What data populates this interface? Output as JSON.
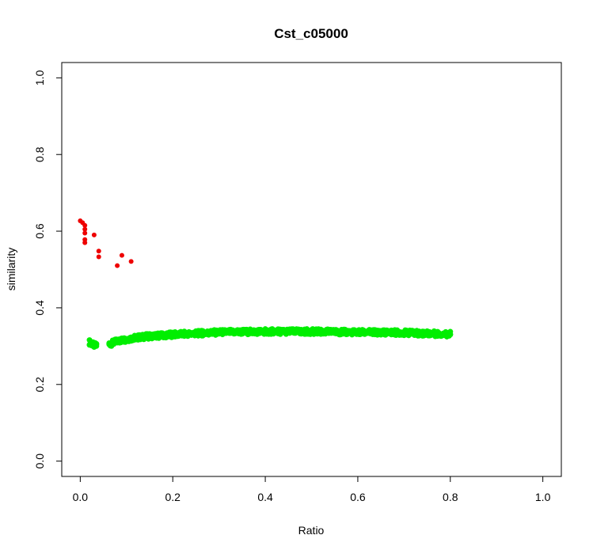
{
  "chart_data": {
    "type": "scatter",
    "title": "Cst_c05000",
    "xlabel": "Ratio",
    "ylabel": "similarity",
    "xlim": [
      -0.04,
      1.04
    ],
    "ylim": [
      -0.04,
      1.04
    ],
    "x_ticks": [
      "0.0",
      "0.2",
      "0.4",
      "0.6",
      "0.8",
      "1.0"
    ],
    "y_ticks": [
      "0.0",
      "0.2",
      "0.4",
      "0.6",
      "0.8",
      "1.0"
    ],
    "grid": false,
    "legend": "none",
    "colors": {
      "series1": "#ee0000",
      "series2": "#00ee00"
    },
    "series": [
      {
        "color": "#ee0000",
        "points": [
          [
            0.0,
            0.627
          ],
          [
            0.005,
            0.622
          ],
          [
            0.01,
            0.615
          ],
          [
            0.01,
            0.605
          ],
          [
            0.01,
            0.595
          ],
          [
            0.01,
            0.578
          ],
          [
            0.01,
            0.57
          ],
          [
            0.03,
            0.59
          ],
          [
            0.04,
            0.548
          ],
          [
            0.04,
            0.533
          ],
          [
            0.08,
            0.51
          ],
          [
            0.09,
            0.537
          ],
          [
            0.11,
            0.521
          ]
        ]
      },
      {
        "color": "#00ee00",
        "x_range": [
          0.02,
          0.8
        ],
        "points": [
          [
            0.02,
            0.31
          ],
          [
            0.03,
            0.302
          ],
          [
            0.065,
            0.306
          ],
          [
            0.08,
            0.313
          ],
          [
            0.1,
            0.318
          ],
          [
            0.12,
            0.322
          ],
          [
            0.15,
            0.326
          ],
          [
            0.2,
            0.33
          ],
          [
            0.25,
            0.333
          ],
          [
            0.3,
            0.336
          ],
          [
            0.35,
            0.337
          ],
          [
            0.4,
            0.338
          ],
          [
            0.45,
            0.338
          ],
          [
            0.5,
            0.338
          ],
          [
            0.55,
            0.337
          ],
          [
            0.6,
            0.336
          ],
          [
            0.65,
            0.336
          ],
          [
            0.7,
            0.335
          ],
          [
            0.75,
            0.333
          ],
          [
            0.8,
            0.331
          ]
        ]
      }
    ]
  }
}
